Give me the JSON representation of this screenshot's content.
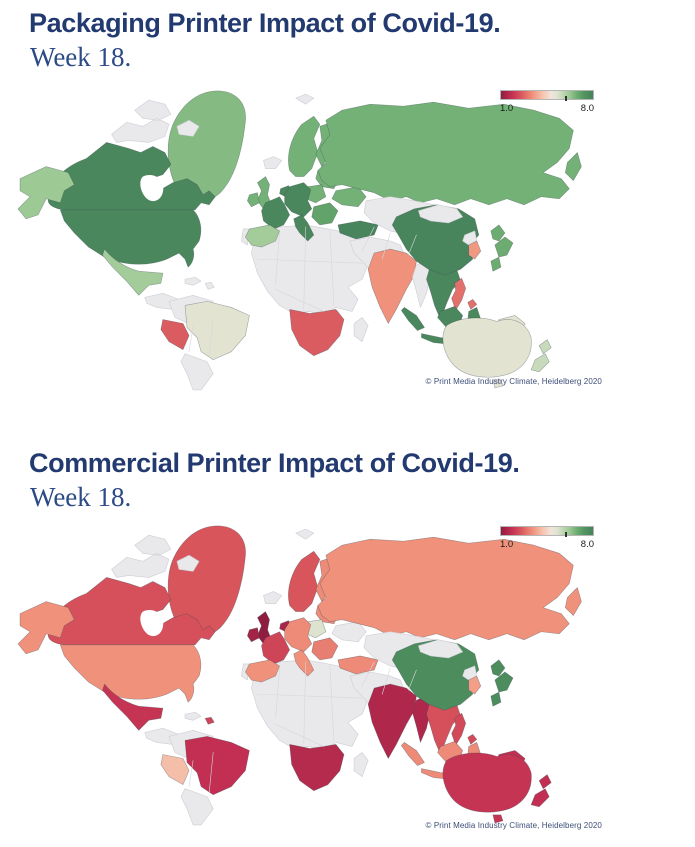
{
  "accent_color": "#223a70",
  "sections": [
    {
      "title": "Packaging Printer Impact of Covid-19.",
      "subtitle": "Week 18.",
      "legend": {
        "min_label": "1.0",
        "max_label": "8.0"
      },
      "copyright": "© Print Media Industry Climate, Heidelberg 2020"
    },
    {
      "title": "Commercial Printer Impact of Covid-19.",
      "subtitle": "Week 18.",
      "legend": {
        "min_label": "1.0",
        "max_label": "8.0"
      },
      "copyright": "© Print Media Industry Climate, Heidelberg 2020"
    }
  ],
  "chart_data": [
    {
      "type": "heatmap",
      "subtype": "choropleth-world-map",
      "title": "Packaging Printer Impact of Covid-19. Week 18.",
      "legend_position": "top-right",
      "scale": {
        "min": 1.0,
        "max": 8.0,
        "tick_fraction": 0.7,
        "no_data_color": "#e9e9ec",
        "no_data_stroke": "#cdcdd4",
        "data_stroke": "rgba(60,75,85,0.45)",
        "stops": [
          [
            1.0,
            "#8e1d40"
          ],
          [
            1.8,
            "#c22f52"
          ],
          [
            2.5,
            "#d8555c"
          ],
          [
            3.4,
            "#f0917c"
          ],
          [
            4.2,
            "#f6c5b0"
          ],
          [
            4.8,
            "#f1e4da"
          ],
          [
            5.3,
            "#dde3cf"
          ],
          [
            6.2,
            "#9dc995"
          ],
          [
            6.8,
            "#6cac70"
          ],
          [
            7.3,
            "#53955f"
          ],
          [
            8.0,
            "#46815b"
          ]
        ]
      },
      "values": {
        "canada": 7.8,
        "usa": 7.8,
        "alaska": 6.2,
        "greenland": 6.5,
        "mexico": 6.1,
        "peru": 2.6,
        "brazil": 5.15,
        "southern_africa": 2.6,
        "uk": 6.7,
        "ireland": 6.7,
        "france": 7.8,
        "benelux": 7.8,
        "central_europe": 7.8,
        "italy": 7.8,
        "spain": 6.1,
        "portugal": 6.6,
        "scandinavia": 6.7,
        "finland": 6.7,
        "poland": 6.7,
        "baltics_belarus": 6.7,
        "balkans": 7.0,
        "ukraine": 6.7,
        "turkey": 7.9,
        "russia": 6.7,
        "china": 7.9,
        "japan": 6.8,
        "south_korea": 3.5,
        "india": 3.4,
        "seasia": 7.8,
        "indonesia": 7.8,
        "philippines": 2.9,
        "png": 5.1,
        "australia": 5.15,
        "new_zealand": 5.6
      }
    },
    {
      "type": "heatmap",
      "subtype": "choropleth-world-map",
      "title": "Commercial Printer Impact of Covid-19. Week 18.",
      "legend_position": "top-right",
      "scale": {
        "min": 1.0,
        "max": 8.0,
        "tick_fraction": 0.7,
        "no_data_color": "#e9e9ec",
        "no_data_stroke": "#cdcdd4",
        "data_stroke": "rgba(60,75,85,0.45)",
        "stops": [
          [
            1.0,
            "#8e1d40"
          ],
          [
            1.8,
            "#c22f52"
          ],
          [
            2.5,
            "#d8555c"
          ],
          [
            3.4,
            "#f0917c"
          ],
          [
            4.2,
            "#f6c5b0"
          ],
          [
            4.8,
            "#f1e4da"
          ],
          [
            5.3,
            "#dde3cf"
          ],
          [
            6.2,
            "#9dc995"
          ],
          [
            6.8,
            "#6cac70"
          ],
          [
            7.3,
            "#53955f"
          ],
          [
            8.0,
            "#46815b"
          ]
        ]
      },
      "values": {
        "canada": 2.4,
        "usa": 3.4,
        "alaska": 3.4,
        "greenland": 2.5,
        "mexico": 1.9,
        "peru": 4.1,
        "brazil": 1.8,
        "southern_africa": 1.6,
        "dominican_republic": 2.2,
        "uk": 1.0,
        "ireland": 1.3,
        "france": 2.2,
        "benelux": 1.4,
        "central_europe": 3.3,
        "italy": 3.4,
        "spain": 3.4,
        "portugal": 3.4,
        "scandinavia": 2.5,
        "finland": 3.3,
        "poland": 5.3,
        "baltics_belarus": 3.3,
        "balkans": 3.1,
        "turkey": 3.3,
        "russia": 3.4,
        "china": 7.6,
        "japan": 7.6,
        "south_korea": 3.6,
        "india": 1.5,
        "myanmar": 1.5,
        "seasia": 2.4,
        "indonesia": 3.3,
        "philippines": 2.3,
        "png": 1.8,
        "australia": 1.9,
        "new_zealand": 1.8
      }
    }
  ]
}
